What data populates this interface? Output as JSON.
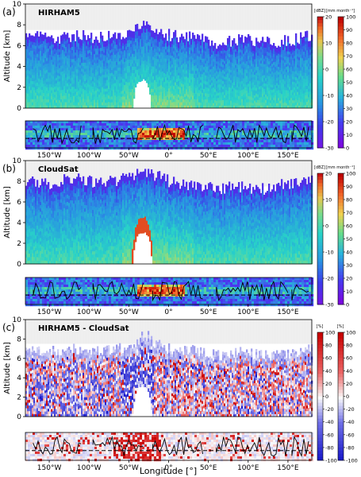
{
  "figure": {
    "xlabel": "Longitude [°]",
    "ylabel": "Altitude [km]",
    "x_ticks": [
      "150°W",
      "100°W",
      "50°W",
      "0°",
      "50°E",
      "100°E",
      "150°E"
    ],
    "x_tick_values": [
      -150,
      -100,
      -50,
      0,
      50,
      100,
      150
    ],
    "y_ticks": [
      0,
      2,
      4,
      6,
      8,
      10
    ],
    "xlim": [
      -180,
      180
    ],
    "ylim": [
      0,
      10
    ]
  },
  "panels": [
    {
      "letter": "(a)",
      "title": "HIRHAM5",
      "colorbar_left": {
        "unit": "[dBZ]",
        "ticks": [
          "20",
          "10",
          "0",
          "-10",
          "-20",
          "-30"
        ],
        "range": [
          -30,
          20
        ]
      },
      "colorbar_right": {
        "unit": "[mm month⁻¹]",
        "ticks": [
          "100",
          "90",
          "80",
          "70",
          "60",
          "50",
          "40",
          "30",
          "20",
          "10",
          "0"
        ],
        "range": [
          0,
          100
        ]
      }
    },
    {
      "letter": "(b)",
      "title": "CloudSat",
      "colorbar_left": {
        "unit": "[dBZ]",
        "ticks": [
          "20",
          "10",
          "0",
          "-10",
          "-20",
          "-30"
        ],
        "range": [
          -30,
          20
        ]
      },
      "colorbar_right": {
        "unit": "[mm month⁻¹]",
        "ticks": [
          "100",
          "90",
          "80",
          "70",
          "60",
          "50",
          "40",
          "30",
          "20",
          "10",
          "0"
        ],
        "range": [
          0,
          100
        ]
      }
    },
    {
      "letter": "(c)",
      "title": "HIRHAM5 - CloudSat",
      "colorbar_left": {
        "unit": "[%]",
        "ticks": [
          "100",
          "80",
          "60",
          "40",
          "20",
          "0",
          "-20",
          "-40",
          "-60",
          "-80",
          "-100"
        ],
        "range": [
          -100,
          100
        ]
      },
      "colorbar_right": {
        "unit": "[%]",
        "ticks": [
          "100",
          "80",
          "60",
          "40",
          "20",
          "0",
          "-20",
          "-40",
          "-60",
          "-80",
          "-100"
        ],
        "range": [
          -100,
          100
        ]
      }
    }
  ],
  "chart_data": [
    {
      "type": "heatmap",
      "title": "HIRHAM5",
      "xlabel": "",
      "ylabel": "Altitude [km]",
      "xlim": [
        -180,
        180
      ],
      "ylim": [
        0,
        10
      ],
      "colorscale": "dBZ",
      "cloud_top_km": [
        {
          "lon": -180,
          "top": 7
        },
        {
          "lon": -150,
          "top": 6.6
        },
        {
          "lon": -120,
          "top": 7
        },
        {
          "lon": -90,
          "top": 6.8
        },
        {
          "lon": -60,
          "top": 7
        },
        {
          "lon": -45,
          "top": 7.6
        },
        {
          "lon": -30,
          "top": 8.5
        },
        {
          "lon": -15,
          "top": 7.4
        },
        {
          "lon": 0,
          "top": 7
        },
        {
          "lon": 30,
          "top": 6.8
        },
        {
          "lon": 60,
          "top": 6.2
        },
        {
          "lon": 90,
          "top": 6.6
        },
        {
          "lon": 120,
          "top": 6.3
        },
        {
          "lon": 150,
          "top": 6.5
        },
        {
          "lon": 180,
          "top": 7
        }
      ],
      "surface_mask_km": [
        {
          "lon": -47,
          "top": 0
        },
        {
          "lon": -42,
          "top": 2.2
        },
        {
          "lon": -38,
          "top": 2.8
        },
        {
          "lon": -30,
          "top": 2.8
        },
        {
          "lon": -26,
          "top": 2.2
        },
        {
          "lon": -22,
          "top": 0
        }
      ]
    },
    {
      "type": "heatmap",
      "title": "CloudSat",
      "xlabel": "",
      "ylabel": "Altitude [km]",
      "xlim": [
        -180,
        180
      ],
      "ylim": [
        0,
        10
      ],
      "colorscale": "dBZ",
      "cloud_top_km": [
        {
          "lon": -180,
          "top": 8
        },
        {
          "lon": -150,
          "top": 7.8
        },
        {
          "lon": -120,
          "top": 8.4
        },
        {
          "lon": -90,
          "top": 7.8
        },
        {
          "lon": -60,
          "top": 8.2
        },
        {
          "lon": -45,
          "top": 8.6
        },
        {
          "lon": -30,
          "top": 9
        },
        {
          "lon": -15,
          "top": 8.5
        },
        {
          "lon": 0,
          "top": 8
        },
        {
          "lon": 30,
          "top": 7.6
        },
        {
          "lon": 60,
          "top": 7.3
        },
        {
          "lon": 90,
          "top": 7.5
        },
        {
          "lon": 120,
          "top": 7.2
        },
        {
          "lon": 150,
          "top": 7.8
        },
        {
          "lon": 180,
          "top": 8
        }
      ],
      "surface_mask_km": [
        {
          "lon": -47,
          "top": 0
        },
        {
          "lon": -42,
          "top": 2.6
        },
        {
          "lon": -37,
          "top": 3.3
        },
        {
          "lon": -30,
          "top": 3.3
        },
        {
          "lon": -25,
          "top": 2.6
        },
        {
          "lon": -21,
          "top": 0
        }
      ]
    },
    {
      "type": "heatmap",
      "title": "HIRHAM5 - CloudSat",
      "xlabel": "Longitude [°]",
      "ylabel": "Altitude [km]",
      "xlim": [
        -180,
        180
      ],
      "ylim": [
        0,
        10
      ],
      "colorscale": "difference",
      "cloud_top_km": [
        {
          "lon": -180,
          "top": 7
        },
        {
          "lon": -150,
          "top": 6.8
        },
        {
          "lon": -120,
          "top": 7
        },
        {
          "lon": -90,
          "top": 6.8
        },
        {
          "lon": -60,
          "top": 7
        },
        {
          "lon": -45,
          "top": 7.6
        },
        {
          "lon": -30,
          "top": 8.5
        },
        {
          "lon": -15,
          "top": 7.4
        },
        {
          "lon": 0,
          "top": 7
        },
        {
          "lon": 30,
          "top": 6.8
        },
        {
          "lon": 60,
          "top": 6.3
        },
        {
          "lon": 90,
          "top": 6.6
        },
        {
          "lon": 120,
          "top": 6.3
        },
        {
          "lon": 150,
          "top": 6.5
        },
        {
          "lon": 180,
          "top": 7
        }
      ],
      "surface_mask_km": [
        {
          "lon": -47,
          "top": 0
        },
        {
          "lon": -42,
          "top": 2.6
        },
        {
          "lon": -37,
          "top": 3.3
        },
        {
          "lon": -30,
          "top": 3.3
        },
        {
          "lon": -25,
          "top": 2.6
        },
        {
          "lon": -21,
          "top": 0
        }
      ]
    }
  ]
}
